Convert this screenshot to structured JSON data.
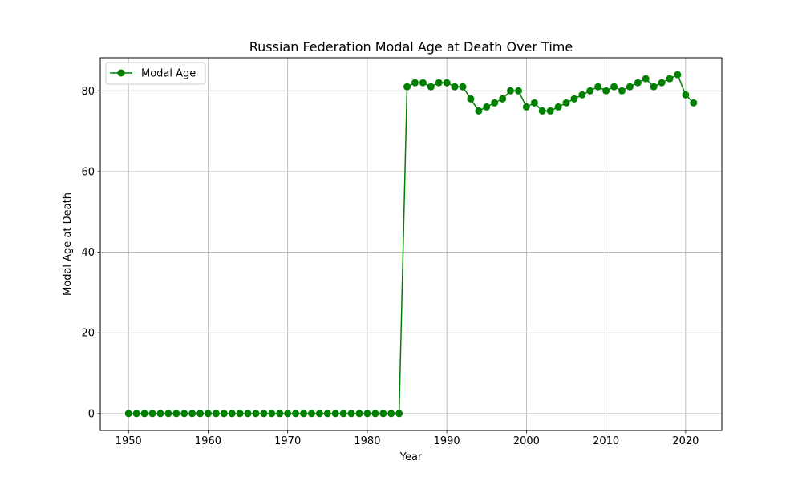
{
  "chart_data": {
    "type": "line",
    "title": "Russian Federation Modal Age at Death Over Time",
    "xlabel": "Year",
    "ylabel": "Modal Age at Death",
    "xlim": [
      1946.45,
      2024.55
    ],
    "ylim": [
      -4.2,
      88.2
    ],
    "xticks": [
      1950,
      1960,
      1970,
      1980,
      1990,
      2000,
      2010,
      2020
    ],
    "yticks": [
      0,
      20,
      40,
      60,
      80
    ],
    "grid": true,
    "legend_position": "top-left",
    "series": [
      {
        "name": "Modal Age",
        "color": "#008000",
        "marker": "circle",
        "x": [
          1950,
          1951,
          1952,
          1953,
          1954,
          1955,
          1956,
          1957,
          1958,
          1959,
          1960,
          1961,
          1962,
          1963,
          1964,
          1965,
          1966,
          1967,
          1968,
          1969,
          1970,
          1971,
          1972,
          1973,
          1974,
          1975,
          1976,
          1977,
          1978,
          1979,
          1980,
          1981,
          1982,
          1983,
          1984,
          1985,
          1986,
          1987,
          1988,
          1989,
          1990,
          1991,
          1992,
          1993,
          1994,
          1995,
          1996,
          1997,
          1998,
          1999,
          2000,
          2001,
          2002,
          2003,
          2004,
          2005,
          2006,
          2007,
          2008,
          2009,
          2010,
          2011,
          2012,
          2013,
          2014,
          2015,
          2016,
          2017,
          2018,
          2019,
          2020,
          2021
        ],
        "y": [
          0,
          0,
          0,
          0,
          0,
          0,
          0,
          0,
          0,
          0,
          0,
          0,
          0,
          0,
          0,
          0,
          0,
          0,
          0,
          0,
          0,
          0,
          0,
          0,
          0,
          0,
          0,
          0,
          0,
          0,
          0,
          0,
          0,
          0,
          0,
          81,
          82,
          82,
          81,
          82,
          82,
          81,
          81,
          78,
          75,
          76,
          77,
          78,
          80,
          80,
          76,
          77,
          75,
          75,
          76,
          77,
          78,
          79,
          80,
          81,
          80,
          81,
          80,
          81,
          82,
          83,
          81,
          82,
          83,
          84,
          79,
          77
        ]
      }
    ]
  }
}
